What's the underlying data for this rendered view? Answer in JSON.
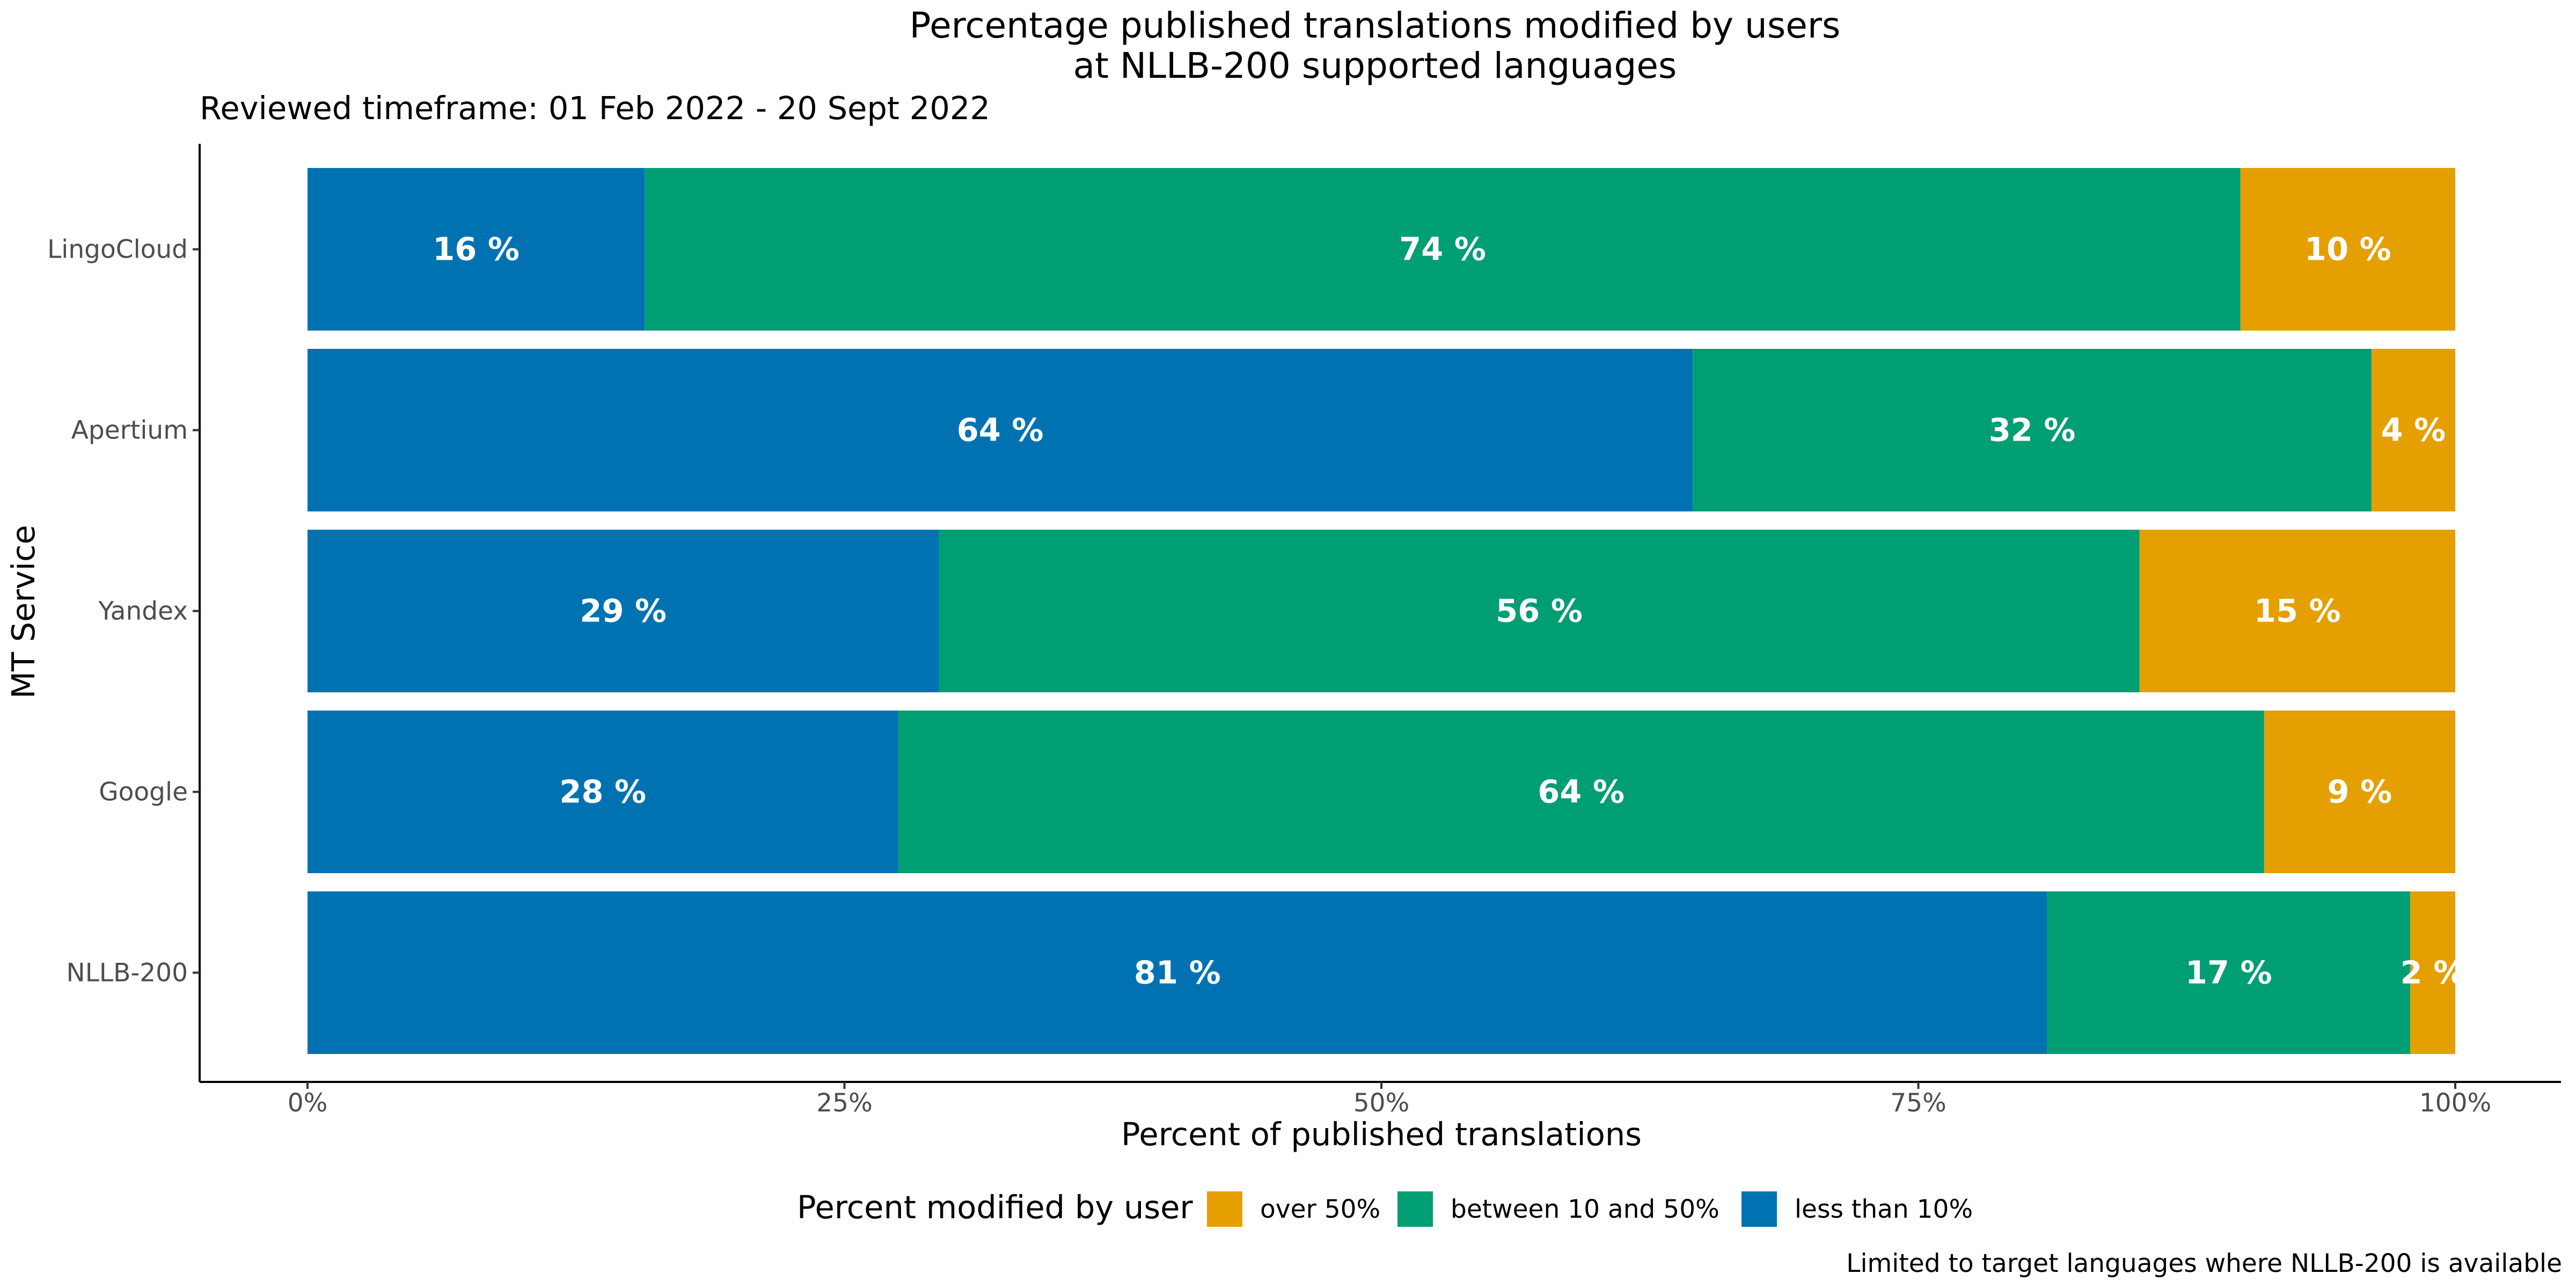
{
  "chart_data": {
    "type": "bar",
    "orientation": "horizontal",
    "stacked": true,
    "title": [
      "Percentage published translations modified by users",
      "at NLLB-200 supported languages"
    ],
    "subtitle": "Reviewed timeframe: 01 Feb 2022 - 20 Sept 2022",
    "xlabel": "Percent of published translations",
    "ylabel": "MT Service",
    "xlim": [
      0,
      100
    ],
    "x_ticks": [
      0,
      25,
      50,
      75,
      100
    ],
    "x_tick_labels": [
      "0%",
      "25%",
      "50%",
      "75%",
      "100%"
    ],
    "categories": [
      "LingoCloud",
      "Apertium",
      "Yandex",
      "Google",
      "NLLB-200"
    ],
    "series": [
      {
        "name": "less than 10%",
        "color": "#0072B2",
        "values": [
          15.7,
          64.5,
          29.4,
          27.5,
          81.0
        ],
        "labels": [
          "16 %",
          "64 %",
          "29 %",
          "28 %",
          "81 %"
        ]
      },
      {
        "name": "between 10 and 50%",
        "color": "#009E73",
        "values": [
          74.3,
          31.6,
          55.9,
          63.6,
          16.9
        ],
        "labels": [
          "74 %",
          "32 %",
          "56 %",
          "64 %",
          "17 %"
        ]
      },
      {
        "name": "over 50%",
        "color": "#E69F00",
        "values": [
          10.0,
          3.9,
          14.7,
          8.9,
          2.1
        ],
        "labels": [
          "10 %",
          "4 %",
          "15 %",
          "9 %",
          "2 %"
        ]
      }
    ],
    "legend": {
      "title": "Percent modified by user",
      "position": "bottom",
      "items": [
        {
          "label": "over 50%",
          "color": "#E69F00"
        },
        {
          "label": "between 10 and 50%",
          "color": "#009E73"
        },
        {
          "label": "less than 10%",
          "color": "#0072B2"
        }
      ]
    },
    "caption": "Limited to target languages where NLLB-200 is available",
    "grid": false
  }
}
